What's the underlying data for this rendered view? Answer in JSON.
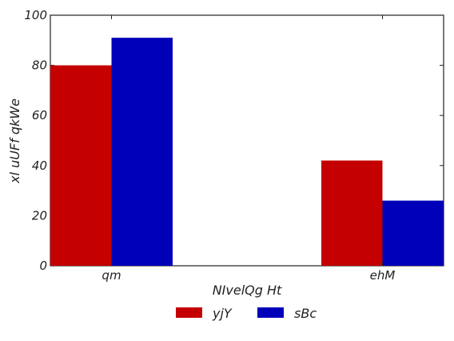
{
  "chart_data": {
    "type": "bar",
    "categories": [
      "qm",
      "ehM"
    ],
    "series": [
      {
        "name": "yjY",
        "values": [
          80,
          42
        ],
        "color": "#c40000"
      },
      {
        "name": "sBc",
        "values": [
          91,
          26
        ],
        "color": "#0000b8"
      }
    ],
    "xlabel": "NIvelQg Ht",
    "ylabel": "xl uUFf qkWe",
    "ylim": [
      0,
      100
    ],
    "yticks": [
      "0",
      "20",
      "40",
      "60",
      "80",
      "100"
    ],
    "grid": false,
    "legend_position": "bottom-center"
  }
}
